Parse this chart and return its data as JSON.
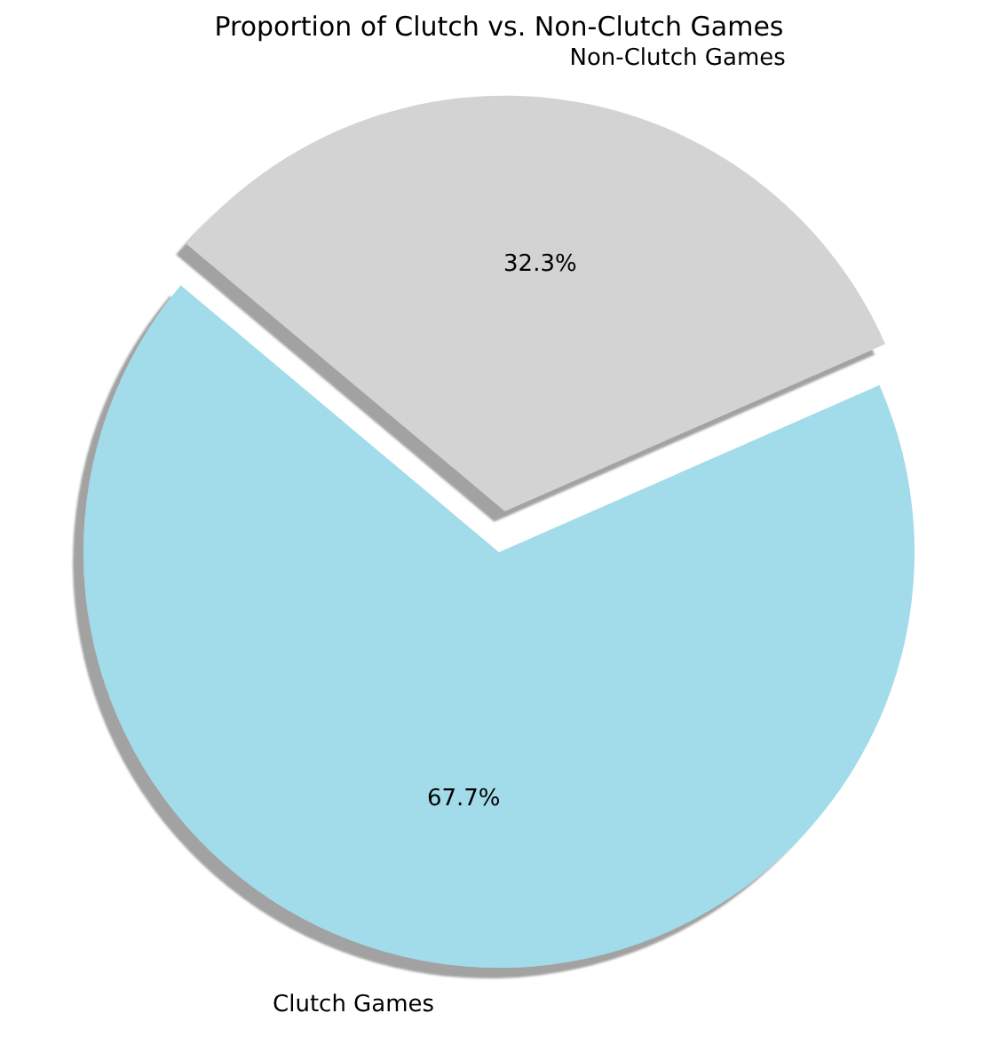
{
  "chart_data": {
    "type": "pie",
    "title": "Proportion of Clutch vs. Non-Clutch Games",
    "categories": [
      "Clutch Games",
      "Non-Clutch Games"
    ],
    "values": [
      67.7,
      32.3
    ],
    "colors": [
      "#a2dbe9",
      "#d3d3d3"
    ],
    "value_labels": [
      "67.7%",
      "32.3%"
    ]
  }
}
